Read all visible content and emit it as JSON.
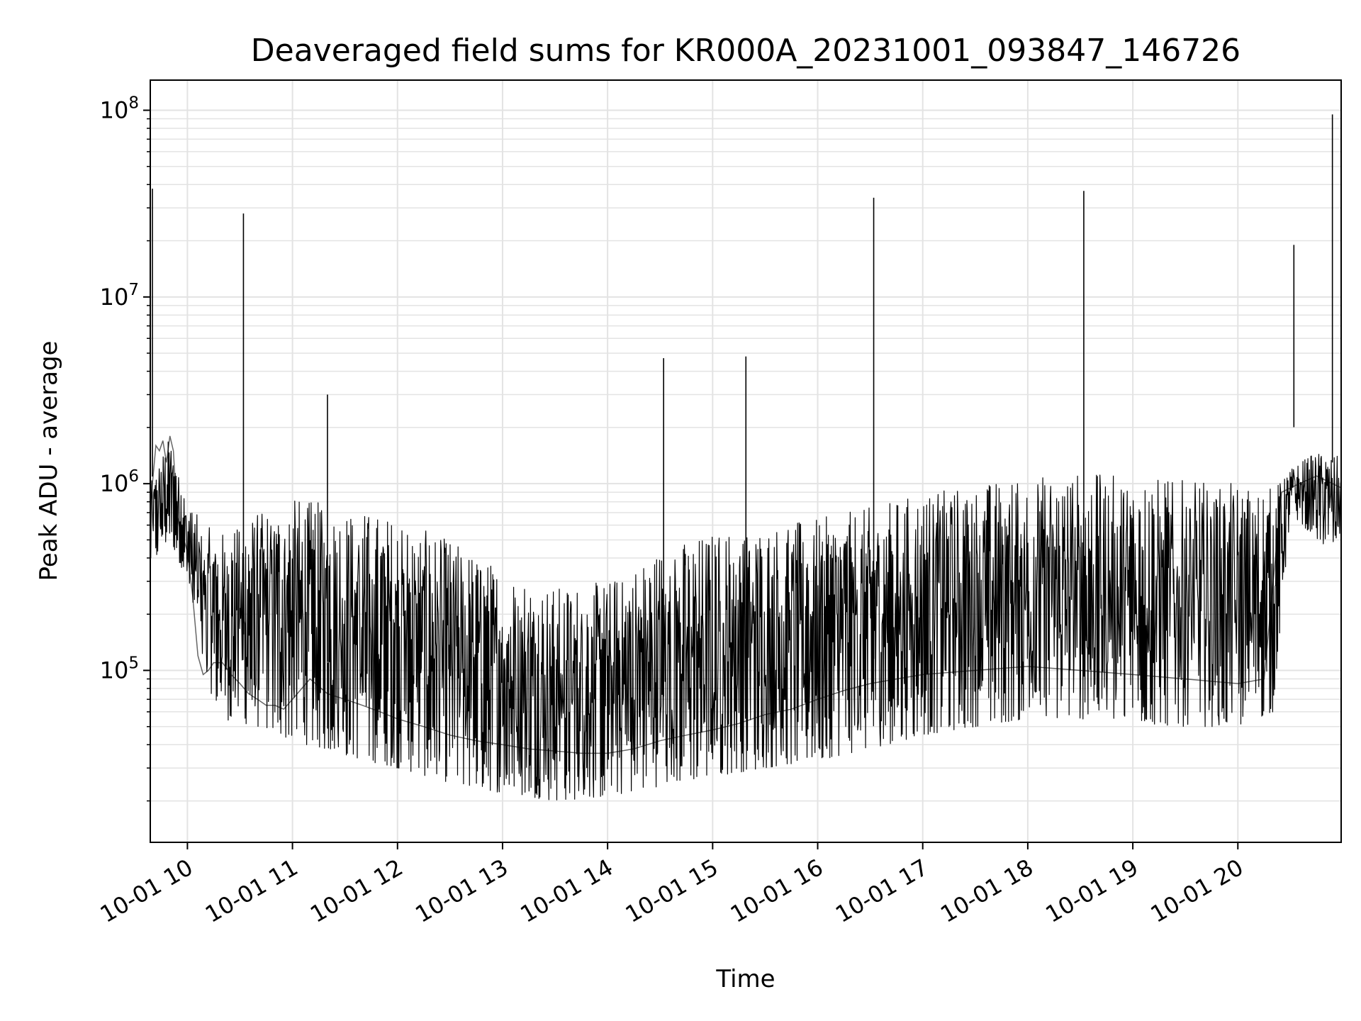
{
  "chart_data": {
    "type": "line",
    "title": "Deaveraged field sums for KR000A_20231001_093847_146726",
    "xlabel": "Time",
    "ylabel": "Peak ADU - average",
    "x_scale": "time",
    "y_scale": "log",
    "xlim": [
      "2023-10-01 09:38:47",
      "2023-10-01 20:59:00"
    ],
    "ylim": [
      12000,
      145000000
    ],
    "grid": true,
    "x_ticks": [
      "10-01 10",
      "10-01 11",
      "10-01 12",
      "10-01 13",
      "10-01 14",
      "10-01 15",
      "10-01 16",
      "10-01 17",
      "10-01 18",
      "10-01 19",
      "10-01 20"
    ],
    "y_ticks": [
      {
        "value": 100000,
        "base": "10",
        "exp": "5"
      },
      {
        "value": 1000000,
        "base": "10",
        "exp": "6"
      },
      {
        "value": 10000000,
        "base": "10",
        "exp": "7"
      },
      {
        "value": 100000000,
        "base": "10",
        "exp": "8"
      }
    ],
    "line_color": "#000000",
    "series": [
      {
        "x": [
          "2023-10-01 09:38:47",
          "2023-10-01 09:40",
          "2023-10-01 09:42",
          "2023-10-01 09:44",
          "2023-10-01 09:46",
          "2023-10-01 09:48",
          "2023-10-01 09:50",
          "2023-10-01 09:52",
          "2023-10-01 09:54",
          "2023-10-01 09:56",
          "2023-10-01 09:58",
          "2023-10-01 10:00",
          "2023-10-01 10:03",
          "2023-10-01 10:06",
          "2023-10-01 10:09",
          "2023-10-01 10:12",
          "2023-10-01 10:15",
          "2023-10-01 10:20",
          "2023-10-01 10:25",
          "2023-10-01 10:30",
          "2023-10-01 10:35",
          "2023-10-01 10:40",
          "2023-10-01 10:45",
          "2023-10-01 10:50",
          "2023-10-01 10:55",
          "2023-10-01 11:00",
          "2023-10-01 11:10",
          "2023-10-01 11:20",
          "2023-10-01 11:30",
          "2023-10-01 11:40",
          "2023-10-01 11:50",
          "2023-10-01 12:00",
          "2023-10-01 12:15",
          "2023-10-01 12:30",
          "2023-10-01 12:45",
          "2023-10-01 13:00",
          "2023-10-01 13:15",
          "2023-10-01 13:30",
          "2023-10-01 13:45",
          "2023-10-01 14:00",
          "2023-10-01 14:15",
          "2023-10-01 14:30",
          "2023-10-01 14:45",
          "2023-10-01 15:00",
          "2023-10-01 15:15",
          "2023-10-01 15:30",
          "2023-10-01 15:45",
          "2023-10-01 16:00",
          "2023-10-01 16:15",
          "2023-10-01 16:30",
          "2023-10-01 16:45",
          "2023-10-01 17:00",
          "2023-10-01 17:30",
          "2023-10-01 18:00",
          "2023-10-01 18:30",
          "2023-10-01 19:00",
          "2023-10-01 19:30",
          "2023-10-01 20:00",
          "2023-10-01 20:15",
          "2023-10-01 20:25",
          "2023-10-01 20:35",
          "2023-10-01 20:45",
          "2023-10-01 20:59"
        ],
        "y": [
          700000,
          1000000,
          1600000,
          1500000,
          1700000,
          1300000,
          1800000,
          1500000,
          700000,
          550000,
          500000,
          430000,
          250000,
          120000,
          95000,
          100000,
          110000,
          110000,
          95000,
          85000,
          75000,
          70000,
          65000,
          65000,
          62000,
          70000,
          90000,
          75000,
          70000,
          65000,
          60000,
          55000,
          50000,
          45000,
          42000,
          40000,
          38000,
          37000,
          36000,
          36000,
          38000,
          42000,
          45000,
          48000,
          52000,
          58000,
          62000,
          70000,
          78000,
          85000,
          90000,
          95000,
          100000,
          105000,
          100000,
          95000,
          90000,
          85000,
          90000,
          900000,
          1000000,
          1100000,
          950000
        ]
      }
    ],
    "envelope": {
      "x": [
        "2023-10-01 09:38:47",
        "2023-10-01 09:50",
        "2023-10-01 10:00",
        "2023-10-01 10:10",
        "2023-10-01 10:20",
        "2023-10-01 10:40",
        "2023-10-01 11:00",
        "2023-10-01 11:30",
        "2023-10-01 12:00",
        "2023-10-01 12:30",
        "2023-10-01 13:00",
        "2023-10-01 13:30",
        "2023-10-01 14:00",
        "2023-10-01 14:30",
        "2023-10-01 15:00",
        "2023-10-01 15:30",
        "2023-10-01 16:00",
        "2023-10-01 16:30",
        "2023-10-01 17:00",
        "2023-10-01 17:30",
        "2023-10-01 18:00",
        "2023-10-01 18:30",
        "2023-10-01 19:00",
        "2023-10-01 19:30",
        "2023-10-01 20:00",
        "2023-10-01 20:20",
        "2023-10-01 20:30",
        "2023-10-01 20:45",
        "2023-10-01 20:59"
      ],
      "upper": [
        1000000,
        1800000,
        800000,
        600000,
        550000,
        700000,
        850000,
        750000,
        650000,
        500000,
        350000,
        280000,
        300000,
        450000,
        550000,
        600000,
        650000,
        750000,
        900000,
        1000000,
        1100000,
        1150000,
        1100000,
        1050000,
        1000000,
        950000,
        1200000,
        1500000,
        1400000
      ],
      "lower": [
        350000,
        500000,
        300000,
        90000,
        55000,
        50000,
        42000,
        35000,
        30000,
        25000,
        22000,
        20000,
        21000,
        24000,
        27000,
        30000,
        33000,
        38000,
        45000,
        50000,
        55000,
        55000,
        52000,
        50000,
        50000,
        60000,
        700000,
        500000,
        400000
      ]
    },
    "spikes": [
      {
        "x": "2023-10-01 09:40",
        "y": 38000000
      },
      {
        "x": "2023-10-01 10:32",
        "y": 28000000
      },
      {
        "x": "2023-10-01 11:20",
        "y": 3000000
      },
      {
        "x": "2023-10-01 14:32",
        "y": 4700000
      },
      {
        "x": "2023-10-01 15:19",
        "y": 4800000
      },
      {
        "x": "2023-10-01 16:32",
        "y": 34000000
      },
      {
        "x": "2023-10-01 18:32",
        "y": 37000000
      },
      {
        "x": "2023-10-01 20:32",
        "y": 19000000
      },
      {
        "x": "2023-10-01 20:54",
        "y": 95000000
      }
    ]
  }
}
